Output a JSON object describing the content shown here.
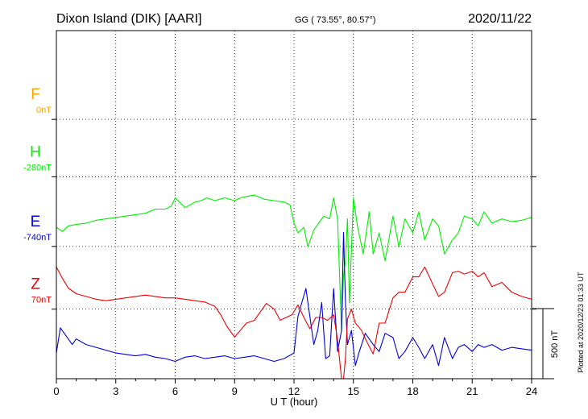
{
  "header": {
    "title": "Dixon Island (DIK)  [AARI]",
    "coords": "GG ( 73.55°,  80.57°)",
    "date": "2020/11/22"
  },
  "side_note": "Plotted at 2020/12/23 01:33 UT",
  "scale_bar": {
    "label": "500 nT",
    "value_nT": 500
  },
  "colors": {
    "F": "#ffa500",
    "H": "#00ee00",
    "E": "#0000dd",
    "Z": "#ee0000",
    "axis": "#000000"
  },
  "chart_data": {
    "type": "line",
    "xlabel": "U T (hour)",
    "xlim": [
      0,
      24
    ],
    "xticks": [
      "0",
      "3",
      "6",
      "9",
      "12",
      "15",
      "18",
      "21",
      "24"
    ],
    "traces": [
      {
        "name": "F",
        "label": "F",
        "base": "0nT",
        "baseline_frac": 0.255,
        "values": []
      },
      {
        "name": "H",
        "label": "H",
        "base": "-280nT",
        "baseline_frac": 0.42,
        "x": [
          0,
          0.3,
          0.6,
          1,
          1.5,
          2,
          2.5,
          3,
          3.5,
          4,
          4.5,
          5,
          5.5,
          5.8,
          6,
          6.5,
          7,
          7.3,
          7.6,
          8,
          8.5,
          9,
          9.3,
          9.6,
          10,
          10.5,
          11,
          11.5,
          11.8,
          12,
          12.2,
          12.5,
          12.7,
          13,
          13.3,
          13.5,
          13.8,
          14,
          14.2,
          14.4,
          14.5,
          14.6,
          14.7,
          14.8,
          15,
          15.2,
          15.5,
          15.8,
          16,
          16.3,
          16.6,
          17,
          17.3,
          17.6,
          18,
          18.3,
          18.6,
          19,
          19.3,
          19.6,
          20,
          20.3,
          20.6,
          21,
          21.3,
          21.6,
          22,
          22.5,
          23,
          23.5,
          24
        ],
        "y": [
          -360,
          -390,
          -350,
          -340,
          -330,
          -310,
          -300,
          -290,
          -280,
          -270,
          -260,
          -230,
          -230,
          -210,
          -150,
          -220,
          -180,
          -170,
          -150,
          -170,
          -150,
          -170,
          -150,
          -140,
          -130,
          -160,
          -170,
          -180,
          -200,
          -330,
          -400,
          -360,
          -500,
          -380,
          -320,
          -280,
          -300,
          -150,
          -300,
          -1100,
          -700,
          -600,
          -300,
          -900,
          -150,
          -350,
          -550,
          -250,
          -550,
          -400,
          -600,
          -280,
          -500,
          -300,
          -400,
          -250,
          -450,
          -300,
          -350,
          -550,
          -450,
          -400,
          -280,
          -300,
          -350,
          -250,
          -330,
          -300,
          -320,
          -310,
          -290
        ]
      },
      {
        "name": "E",
        "label": "E",
        "base": "-740nT",
        "baseline_frac": 0.62,
        "x": [
          0,
          0.2,
          0.5,
          0.8,
          1,
          1.5,
          2,
          2.5,
          3,
          3.5,
          4,
          4.5,
          5,
          5.5,
          6,
          6.5,
          7,
          7.5,
          8,
          8.5,
          9,
          9.5,
          10,
          10.5,
          11,
          11.5,
          12,
          12.2,
          12.4,
          12.6,
          12.8,
          13,
          13.2,
          13.4,
          13.6,
          13.8,
          14,
          14.2,
          14.4,
          14.5,
          14.6,
          14.7,
          14.9,
          15.1,
          15.3,
          15.6,
          16,
          16.3,
          16.6,
          17,
          17.3,
          17.6,
          18,
          18.3,
          18.6,
          19,
          19.3,
          19.6,
          20,
          20.3,
          20.6,
          21,
          21.3,
          21.6,
          22,
          22.5,
          23,
          23.5,
          24
        ],
        "y": [
          -760,
          -580,
          -640,
          -700,
          -660,
          -700,
          -720,
          -740,
          -760,
          -770,
          -780,
          -770,
          -790,
          -800,
          -820,
          -790,
          -780,
          -800,
          -790,
          -780,
          -800,
          -790,
          -780,
          -800,
          -820,
          -800,
          -760,
          -500,
          -400,
          -300,
          -500,
          -700,
          -600,
          -400,
          -800,
          -780,
          -300,
          -750,
          -600,
          100,
          -400,
          -700,
          -600,
          -850,
          -750,
          -620,
          -700,
          -750,
          -620,
          -650,
          -800,
          -750,
          -650,
          -720,
          -800,
          -700,
          -850,
          -650,
          -800,
          -720,
          -700,
          -750,
          -700,
          -720,
          -700,
          -740,
          -720,
          -730,
          -740
        ]
      },
      {
        "name": "Z",
        "label": "Z",
        "base": "70nT",
        "baseline_frac": 0.8,
        "x": [
          0,
          0.3,
          0.6,
          1,
          1.5,
          2,
          2.5,
          3,
          3.5,
          4,
          4.5,
          5,
          5.5,
          6,
          6.5,
          7,
          7.5,
          8,
          8.3,
          8.6,
          9,
          9.3,
          9.6,
          10,
          10.3,
          10.6,
          11,
          11.3,
          11.6,
          11.9,
          12.2,
          12.5,
          12.8,
          13.1,
          13.4,
          13.7,
          14,
          14.2,
          14.4,
          14.5,
          14.6,
          14.7,
          14.9,
          15.1,
          15.4,
          15.7,
          16,
          16.3,
          16.6,
          17,
          17.3,
          17.6,
          18,
          18.3,
          18.6,
          19,
          19.3,
          19.6,
          20,
          20.3,
          20.6,
          21,
          21.3,
          21.6,
          22,
          22.5,
          23,
          23.5,
          24
        ],
        "y": [
          300,
          220,
          150,
          110,
          90,
          70,
          60,
          70,
          80,
          90,
          100,
          90,
          80,
          80,
          70,
          60,
          50,
          20,
          -40,
          -120,
          -200,
          -150,
          -100,
          -80,
          -20,
          40,
          0,
          -80,
          -60,
          -40,
          30,
          -60,
          -140,
          -60,
          -60,
          -80,
          -40,
          -220,
          -500,
          -640,
          -350,
          -70,
          0,
          -100,
          -150,
          -240,
          -320,
          -100,
          -100,
          80,
          120,
          120,
          230,
          230,
          300,
          180,
          90,
          120,
          260,
          270,
          250,
          270,
          230,
          260,
          160,
          190,
          120,
          90,
          70
        ]
      }
    ]
  }
}
